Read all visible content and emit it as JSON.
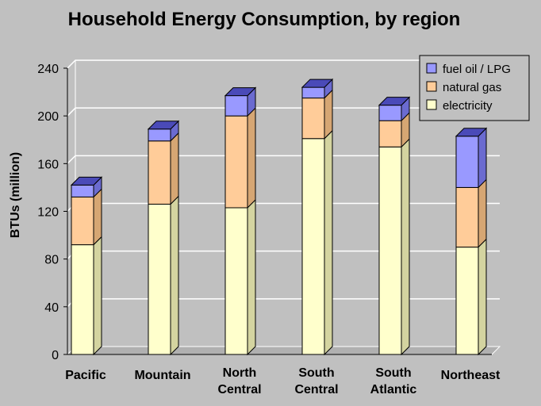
{
  "chart_data": {
    "type": "bar",
    "stacked": true,
    "title": "Household Energy Consumption, by region",
    "ylabel": "BTUs  (million)",
    "xlabel": "",
    "ylim": [
      0,
      240
    ],
    "yticks": [
      0,
      40,
      80,
      120,
      160,
      200,
      240
    ],
    "grid": true,
    "legend_position": "top-right",
    "categories": [
      [
        "Pacific"
      ],
      [
        "Mountain"
      ],
      [
        "North",
        "Central"
      ],
      [
        "South",
        "Central"
      ],
      [
        "South",
        "Atlantic"
      ],
      [
        "Northeast"
      ]
    ],
    "series": [
      {
        "name": "electricity",
        "color": "#ffffcc",
        "side": "#d4d4a0",
        "values": [
          92,
          126,
          123,
          181,
          174,
          90
        ]
      },
      {
        "name": "natural gas",
        "color": "#ffcc99",
        "side": "#d6a673",
        "values": [
          40,
          53,
          77,
          34,
          22,
          50
        ]
      },
      {
        "name": "fuel oil / LPG",
        "color": "#9999ff",
        "side": "#6b6bd0",
        "values": [
          10,
          10,
          17,
          9,
          13,
          43
        ]
      }
    ],
    "colors": {
      "background": "#c0c0c0",
      "gridline": "#ffffff",
      "cap_top": "#4a4ab8"
    }
  }
}
